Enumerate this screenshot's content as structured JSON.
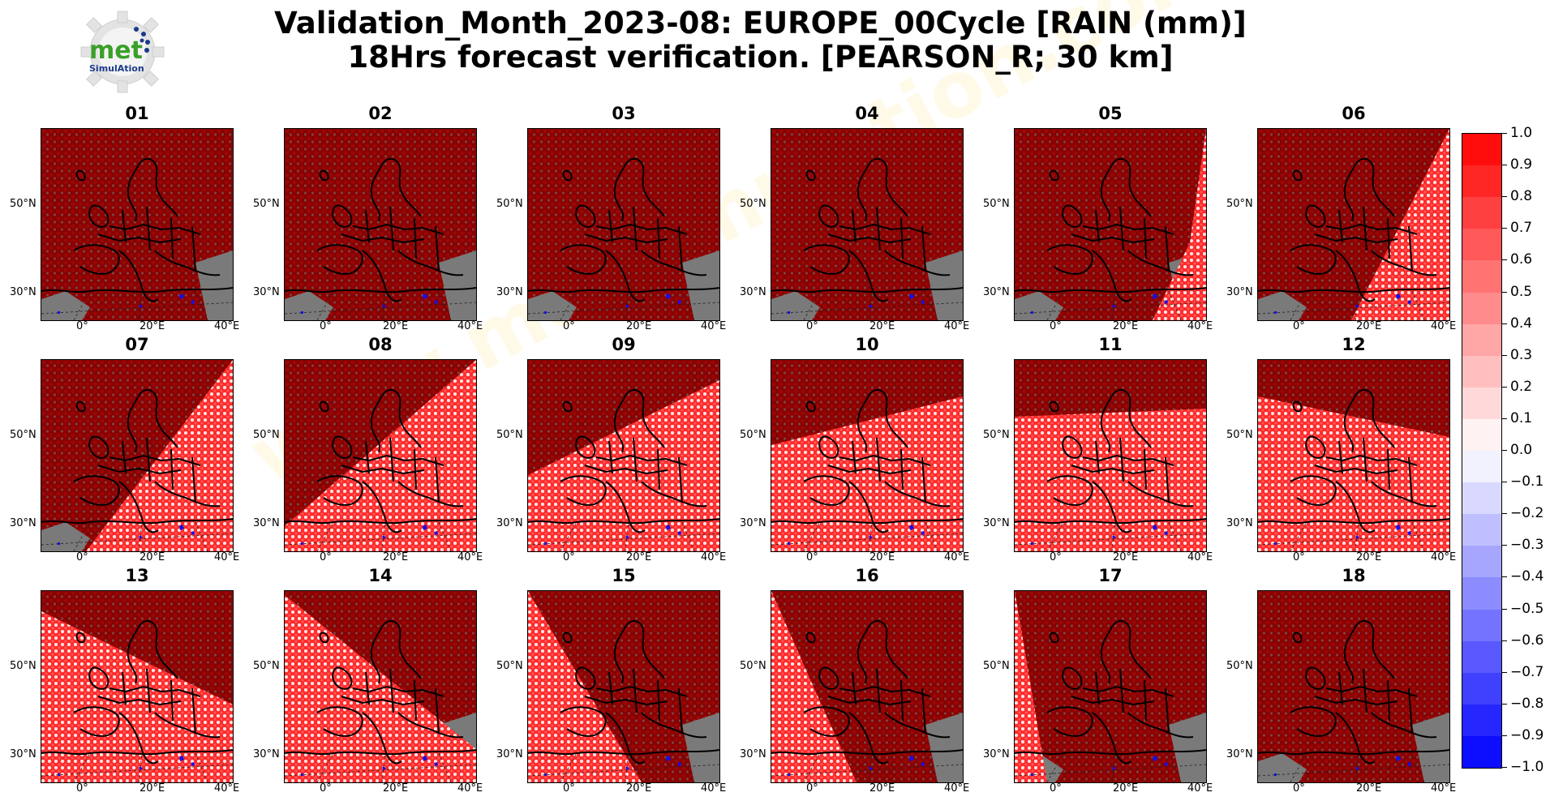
{
  "title": {
    "line1": "Validation_Month_2023-08: EUROPE_00Cycle [RAIN (mm)]",
    "line2": "18Hrs forecast verification.  [PEARSON_R; 30 km]"
  },
  "logo": {
    "text": "met",
    "subtext": "SimulAtion",
    "colors": {
      "met": "#3aa02a",
      "sub": "#1a3a8a",
      "gear": "#e0e0e0",
      "dots": "#1a3a8a"
    }
  },
  "watermark": "www.metsimulation.com",
  "axes": {
    "lat_labels": [
      "50°N",
      "30°N"
    ],
    "lon_labels": [
      "0°",
      "20°E",
      "40°E"
    ]
  },
  "panels": [
    {
      "label": "01",
      "sector": "none"
    },
    {
      "label": "02",
      "sector": "none"
    },
    {
      "label": "03",
      "sector": "none"
    },
    {
      "label": "04",
      "sector": "none"
    },
    {
      "label": "05",
      "sector": "east-narrow"
    },
    {
      "label": "06",
      "sector": "east-wide"
    },
    {
      "label": "07",
      "sector": "southeast-diagonal"
    },
    {
      "label": "08",
      "sector": "southeast-diagonal-wide"
    },
    {
      "label": "09",
      "sector": "south-tilted"
    },
    {
      "label": "10",
      "sector": "south-shallow"
    },
    {
      "label": "11",
      "sector": "south-flat"
    },
    {
      "label": "12",
      "sector": "south-west-high"
    },
    {
      "label": "13",
      "sector": "southwest-diagonal"
    },
    {
      "label": "14",
      "sector": "southwest-diagonal-steep"
    },
    {
      "label": "15",
      "sector": "west-diagonal"
    },
    {
      "label": "16",
      "sector": "west-narrow"
    },
    {
      "label": "17",
      "sector": "west-thin"
    },
    {
      "label": "18",
      "sector": "none"
    }
  ],
  "colorbar": {
    "labels": [
      "1.0",
      "0.9",
      "0.8",
      "0.7",
      "0.6",
      "0.5",
      "0.4",
      "0.3",
      "0.2",
      "0.1",
      "0.0",
      "−0.1",
      "−0.2",
      "−0.3",
      "−0.4",
      "−0.5",
      "−0.6",
      "−0.7",
      "−0.8",
      "−0.9",
      "−1.0"
    ],
    "colors": {
      "positive_max": "#ff0000",
      "negative_max": "#0000ff",
      "neutral": "#ffffff",
      "saturated": "#8b0000",
      "land_mask": "#7a7a7a"
    }
  }
}
